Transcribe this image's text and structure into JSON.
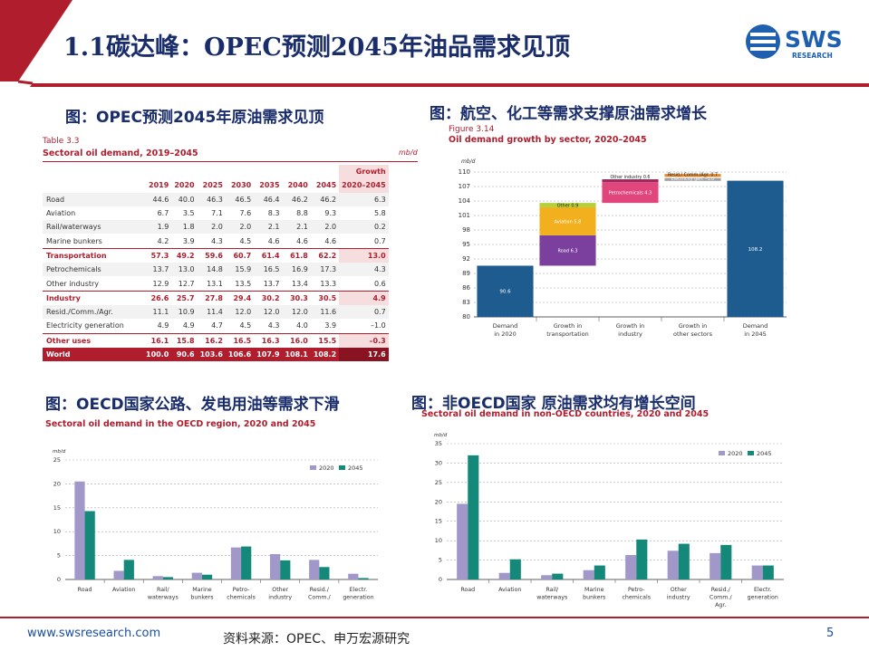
{
  "header": {
    "title": "1.1碳达峰：OPEC预测2045年油品需求见顶",
    "logo_text": "SWS",
    "logo_sub": "RESEARCH",
    "colors": {
      "red": "#b01e2e",
      "navy": "#1a2d6b"
    }
  },
  "panel1": {
    "caption": "图：OPEC预测2045年原油需求见顶",
    "table_label": "Table 3.3",
    "table_title": "Sectoral oil demand, 2019–2045",
    "unit": "mb/d",
    "growth_header": "Growth",
    "columns": [
      "2019",
      "2020",
      "2025",
      "2030",
      "2035",
      "2040",
      "2045",
      "2020–2045"
    ],
    "rows": [
      {
        "name": "Road",
        "values": [
          "44.6",
          "40.0",
          "46.3",
          "46.5",
          "46.4",
          "46.2",
          "46.2",
          "6.3"
        ]
      },
      {
        "name": "Aviation",
        "values": [
          "6.7",
          "3.5",
          "7.1",
          "7.6",
          "8.3",
          "8.8",
          "9.3",
          "5.8"
        ]
      },
      {
        "name": "Rail/waterways",
        "values": [
          "1.9",
          "1.8",
          "2.0",
          "2.0",
          "2.1",
          "2.1",
          "2.0",
          "0.2"
        ]
      },
      {
        "name": "Marine bunkers",
        "values": [
          "4.2",
          "3.9",
          "4.3",
          "4.5",
          "4.6",
          "4.6",
          "4.6",
          "0.7"
        ]
      },
      {
        "name": "Transportation",
        "total": true,
        "values": [
          "57.3",
          "49.2",
          "59.6",
          "60.7",
          "61.4",
          "61.8",
          "62.2",
          "13.0"
        ]
      },
      {
        "name": "Petrochemicals",
        "values": [
          "13.7",
          "13.0",
          "14.8",
          "15.9",
          "16.5",
          "16.9",
          "17.3",
          "4.3"
        ]
      },
      {
        "name": "Other industry",
        "values": [
          "12.9",
          "12.7",
          "13.1",
          "13.5",
          "13.7",
          "13.4",
          "13.3",
          "0.6"
        ]
      },
      {
        "name": "Industry",
        "total": true,
        "values": [
          "26.6",
          "25.7",
          "27.8",
          "29.4",
          "30.2",
          "30.3",
          "30.5",
          "4.9"
        ]
      },
      {
        "name": "Resid./Comm./Agr.",
        "values": [
          "11.1",
          "10.9",
          "11.4",
          "12.0",
          "12.0",
          "12.0",
          "11.6",
          "0.7"
        ]
      },
      {
        "name": "Electricity generation",
        "values": [
          "4.9",
          "4.9",
          "4.7",
          "4.5",
          "4.3",
          "4.0",
          "3.9",
          "–1.0"
        ]
      },
      {
        "name": "Other uses",
        "total": true,
        "values": [
          "16.1",
          "15.8",
          "16.2",
          "16.5",
          "16.3",
          "16.0",
          "15.5",
          "–0.3"
        ]
      },
      {
        "name": "World",
        "world": true,
        "values": [
          "100.0",
          "90.6",
          "103.6",
          "106.6",
          "107.9",
          "108.1",
          "108.2",
          "17.6"
        ]
      }
    ]
  },
  "panel2": {
    "caption": "图：航空、化工等需求支撑原油需求增长",
    "figure_label": "Figure 3.14",
    "figure_title": "Oil demand growth by sector, 2020–2045"
  },
  "panel3": {
    "caption": "图：OECD国家公路、发电用油等需求下滑",
    "figure_title": "Sectoral oil demand in the OECD region, 2020 and 2045"
  },
  "panel4": {
    "caption": "图：非OECD国家 原油需求均有增长空间",
    "figure_title": "Sectoral oil demand in non-OECD countries, 2020 and 2045"
  },
  "chart_data": [
    {
      "type": "bar",
      "subtype": "waterfall",
      "ylabel": "mb/d",
      "ylim": [
        80,
        110
      ],
      "yticks": [
        80,
        83,
        86,
        89,
        92,
        95,
        98,
        101,
        104,
        107,
        110
      ],
      "categories": [
        "Demand\nin 2020",
        "Growth in\ntransportation",
        "Growth in\nindustry",
        "Growth in\nother sectors",
        "Demand\nin 2045"
      ],
      "totals": [
        {
          "category": 0,
          "value": 90.6,
          "label": "90.6"
        },
        {
          "category": 4,
          "value": 108.2,
          "label": "108.2"
        }
      ],
      "segments": [
        {
          "category": 1,
          "from": 90.6,
          "to": 96.9,
          "label": "Road 6.3",
          "color": "#7b3f9e"
        },
        {
          "category": 1,
          "from": 96.9,
          "to": 102.7,
          "label": "Aviation 5.8",
          "color": "#f2b01e"
        },
        {
          "category": 1,
          "from": 102.7,
          "to": 103.6,
          "label": "Other 0.9",
          "color": "#b5cf3a"
        },
        {
          "category": 2,
          "from": 103.6,
          "to": 107.9,
          "label": "Petrochemicals 4.3",
          "color": "#e0457b"
        },
        {
          "category": 2,
          "from": 107.9,
          "to": 108.5,
          "label": "Other industry 0.6",
          "color": "#9c2a5a"
        },
        {
          "category": 3,
          "from": 108.5,
          "to": 109.2,
          "label": "Resid./ Comm./Agr. 0.7",
          "color": "#e98a2a"
        },
        {
          "category": 3,
          "from": 108.2,
          "to": 109.2,
          "label": "Electricity gen. –1.0",
          "color": "#a0a0a0"
        }
      ],
      "colors": {
        "total": "#1e5b8e"
      }
    },
    {
      "type": "bar",
      "ylabel": "mb/d",
      "ylim": [
        0,
        25
      ],
      "yticks": [
        0,
        5,
        10,
        15,
        20,
        25
      ],
      "categories": [
        "Road",
        "Aviation",
        "Rail/\nwaterways",
        "Marine\nbunkers",
        "Petro-\nchemicals",
        "Other\nindustry",
        "Resid./\nComm./",
        "Electr.\ngeneration"
      ],
      "series": [
        {
          "name": "2020",
          "color": "#a197c9",
          "values": [
            20.5,
            1.8,
            0.7,
            1.4,
            6.7,
            5.3,
            4.1,
            1.2
          ]
        },
        {
          "name": "2045",
          "color": "#14897a",
          "values": [
            14.3,
            4.1,
            0.5,
            1.0,
            6.9,
            4.0,
            2.6,
            0.3
          ]
        }
      ],
      "legend": "top-right"
    },
    {
      "type": "bar",
      "ylabel": "mb/d",
      "ylim": [
        0,
        35
      ],
      "yticks": [
        0,
        5,
        10,
        15,
        20,
        25,
        30,
        35
      ],
      "categories": [
        "Road",
        "Aviation",
        "Rail/\nwaterways",
        "Marine\nbunkers",
        "Petro-\nchemicals",
        "Other\nindustry",
        "Resid./\nComm./\nAgr.",
        "Electr.\ngeneration"
      ],
      "series": [
        {
          "name": "2020",
          "color": "#a197c9",
          "values": [
            19.5,
            1.7,
            1.1,
            2.4,
            6.3,
            7.4,
            6.8,
            3.6
          ]
        },
        {
          "name": "2045",
          "color": "#14897a",
          "values": [
            32.0,
            5.2,
            1.5,
            3.6,
            10.3,
            9.2,
            8.9,
            3.6
          ]
        }
      ],
      "legend": "top-right"
    }
  ],
  "footer": {
    "url": "www.swsresearch.com",
    "source": "资料来源：OPEC、申万宏源研究",
    "page": "5"
  }
}
